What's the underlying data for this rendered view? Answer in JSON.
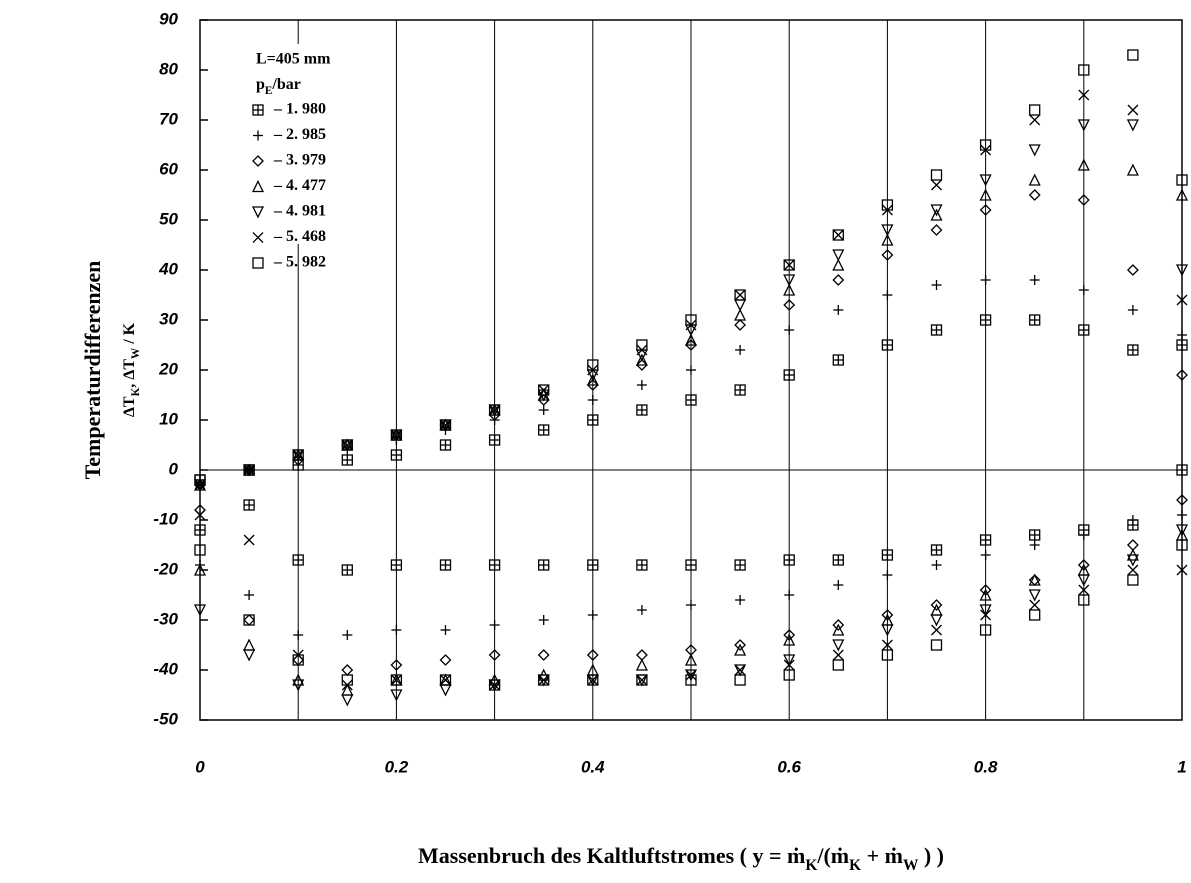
{
  "chart_data": {
    "type": "scatter",
    "ylabel": "Temperaturdifferenzen",
    "ylabel2": [
      {
        "text": "ΔT"
      },
      {
        "text": "K",
        "sub": true
      },
      {
        "text": ", ΔT"
      },
      {
        "text": "W",
        "sub": true
      },
      {
        "text": " / K"
      }
    ],
    "xlabel": [
      {
        "text": "Massenbruch des Kaltluftstromes ( y = ṁ"
      },
      {
        "text": "K",
        "sub": true
      },
      {
        "text": "/(ṁ"
      },
      {
        "text": "K",
        "sub": true
      },
      {
        "text": " + ṁ"
      },
      {
        "text": "W",
        "sub": true
      },
      {
        "text": " ) )"
      }
    ],
    "legend_title": "L=405  mm",
    "legend_subtitle": [
      {
        "text": "p"
      },
      {
        "text": "E",
        "sub": true
      },
      {
        "text": "/bar"
      }
    ],
    "xlim": [
      0,
      1
    ],
    "ylim": [
      -50,
      90
    ],
    "xticks": [
      0,
      0.2,
      0.4,
      0.6,
      0.8,
      1
    ],
    "xminor": [
      0.1,
      0.3,
      0.5,
      0.7,
      0.9
    ],
    "yticks": [
      -50,
      -40,
      -30,
      -20,
      -10,
      0,
      10,
      20,
      30,
      40,
      50,
      60,
      70,
      80,
      90
    ],
    "hline": 0,
    "color": "#000000",
    "x": [
      0,
      0.05,
      0.1,
      0.15,
      0.2,
      0.25,
      0.3,
      0.35,
      0.4,
      0.45,
      0.5,
      0.55,
      0.6,
      0.65,
      0.7,
      0.75,
      0.8,
      0.85,
      0.9,
      0.95,
      1
    ],
    "series": [
      {
        "name": "–  1. 980",
        "marker": "boxplus",
        "values": [
          -2,
          0,
          1,
          2,
          3,
          5,
          6,
          8,
          10,
          12,
          14,
          16,
          19,
          22,
          25,
          28,
          30,
          30,
          28,
          24,
          25
        ],
        "values_w": [
          -12,
          -7,
          -18,
          -20,
          -19,
          -19,
          -19,
          -19,
          -19,
          -19,
          -19,
          -19,
          -18,
          -18,
          -17,
          -16,
          -14,
          -13,
          -12,
          -11,
          0
        ]
      },
      {
        "name": "–  2. 985",
        "marker": "plus",
        "values": [
          -2,
          0,
          2,
          4,
          6,
          8,
          10,
          12,
          14,
          17,
          20,
          24,
          28,
          32,
          35,
          37,
          38,
          38,
          36,
          32,
          27
        ],
        "values_w": [
          -19,
          -25,
          -33,
          -33,
          -32,
          -32,
          -31,
          -30,
          -29,
          -28,
          -27,
          -26,
          -25,
          -23,
          -21,
          -19,
          -17,
          -15,
          -13,
          -10,
          -9
        ]
      },
      {
        "name": "–  3. 979",
        "marker": "diamond",
        "values": [
          -3,
          0,
          2,
          5,
          7,
          9,
          11,
          14,
          17,
          21,
          25,
          29,
          33,
          38,
          43,
          48,
          52,
          55,
          54,
          40,
          19
        ],
        "values_w": [
          -8,
          -30,
          -38,
          -40,
          -39,
          -38,
          -37,
          -37,
          -37,
          -37,
          -36,
          -35,
          -33,
          -31,
          -29,
          -27,
          -24,
          -22,
          -19,
          -15,
          -6
        ]
      },
      {
        "name": "–  4. 477",
        "marker": "triangle",
        "values": [
          -3,
          0,
          3,
          5,
          7,
          9,
          12,
          15,
          18,
          22,
          26,
          31,
          36,
          41,
          46,
          51,
          55,
          58,
          61,
          60,
          55
        ],
        "values_w": [
          -20,
          -35,
          -42,
          -44,
          -42,
          -42,
          -42,
          -41,
          -40,
          -39,
          -38,
          -36,
          -34,
          -32,
          -30,
          -28,
          -25,
          -22,
          -20,
          -17,
          -13
        ]
      },
      {
        "name": "–  4. 981",
        "marker": "triangle-down",
        "values": [
          -3,
          0,
          3,
          5,
          7,
          9,
          12,
          15,
          19,
          23,
          28,
          33,
          38,
          43,
          48,
          52,
          58,
          64,
          69,
          69,
          40
        ],
        "values_w": [
          -28,
          -37,
          -43,
          -46,
          -45,
          -44,
          -43,
          -42,
          -42,
          -42,
          -41,
          -40,
          -38,
          -35,
          -32,
          -30,
          -28,
          -25,
          -22,
          -18,
          -12
        ]
      },
      {
        "name": "–  5. 468",
        "marker": "x",
        "values": [
          -3,
          0,
          3,
          5,
          7,
          9,
          12,
          16,
          20,
          24,
          29,
          35,
          41,
          47,
          52,
          57,
          64,
          70,
          75,
          72,
          34
        ],
        "values_w": [
          -9,
          -14,
          -37,
          -43,
          -42,
          -42,
          -43,
          -42,
          -42,
          -42,
          -41,
          -40,
          -39,
          -37,
          -35,
          -32,
          -29,
          -27,
          -24,
          -20,
          -20
        ]
      },
      {
        "name": "–  5. 982",
        "marker": "square",
        "values": [
          -2,
          0,
          3,
          5,
          7,
          9,
          12,
          16,
          21,
          25,
          30,
          35,
          41,
          47,
          53,
          59,
          65,
          72,
          80,
          83,
          58
        ],
        "values_w": [
          -16,
          -30,
          -38,
          -42,
          -42,
          -42,
          -43,
          -42,
          -42,
          -42,
          -42,
          -42,
          -41,
          -39,
          -37,
          -35,
          -32,
          -29,
          -26,
          -22,
          -15
        ]
      }
    ]
  }
}
